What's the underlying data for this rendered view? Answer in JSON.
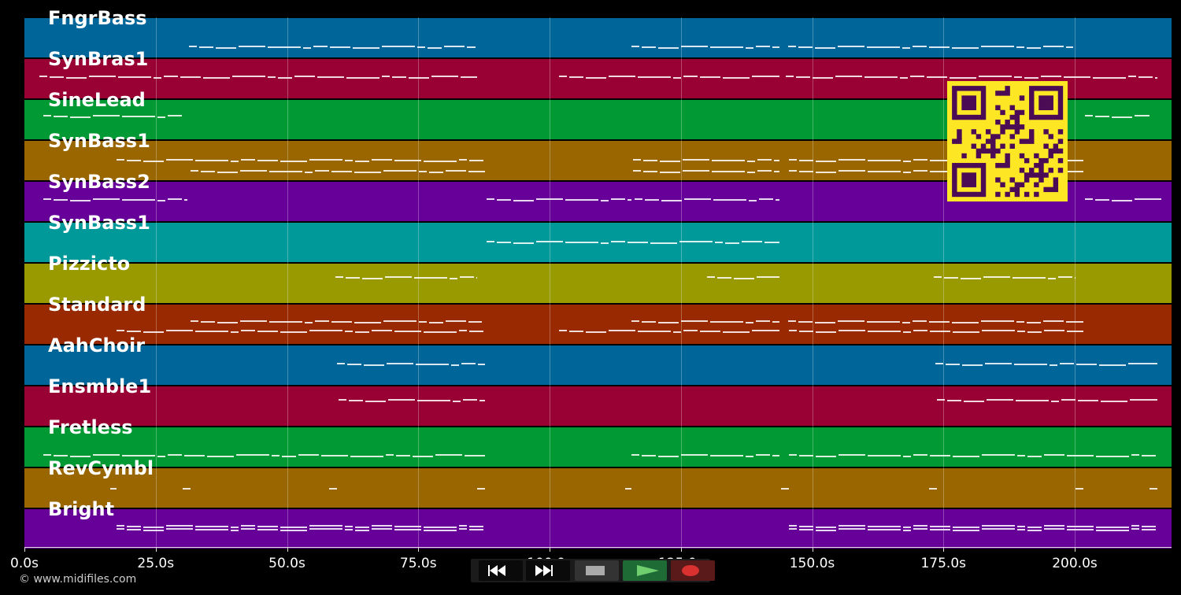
{
  "tracks": [
    {
      "name": "FngrBass",
      "color": "#006699"
    },
    {
      "name": "SynBras1",
      "color": "#990033"
    },
    {
      "name": "SineLead",
      "color": "#009933"
    },
    {
      "name": "SynBass1",
      "color": "#996600"
    },
    {
      "name": "SynBass2",
      "color": "#660099"
    },
    {
      "name": "SynBass1",
      "color": "#009999"
    },
    {
      "name": "Pizzicto",
      "color": "#999900"
    },
    {
      "name": "Standard",
      "color": "#992900"
    },
    {
      "name": "AahChoir",
      "color": "#006699"
    },
    {
      "name": "Ensmble1",
      "color": "#990033"
    },
    {
      "name": "Fretless",
      "color": "#009933"
    },
    {
      "name": "RevCymbl",
      "color": "#996600"
    },
    {
      "name": "Bright",
      "color": "#660099"
    }
  ],
  "axis": {
    "ticks": [
      "0.0s",
      "25.0s",
      "50.0s",
      "75.0s",
      "100.0s",
      "125.0s",
      "150.0s",
      "175.0s",
      "200.0s"
    ]
  },
  "copyright": "© www.midifiles.com",
  "transport": {
    "buttons": [
      {
        "name": "rewind-button",
        "icon": "rewind-icon"
      },
      {
        "name": "fast-forward-button",
        "icon": "fast-forward-icon"
      },
      {
        "name": "stop-button",
        "icon": "stop-icon"
      },
      {
        "name": "play-button",
        "icon": "play-icon"
      },
      {
        "name": "record-button",
        "icon": "record-icon"
      }
    ]
  },
  "qr_code": {
    "icon": "qr-code-icon"
  }
}
